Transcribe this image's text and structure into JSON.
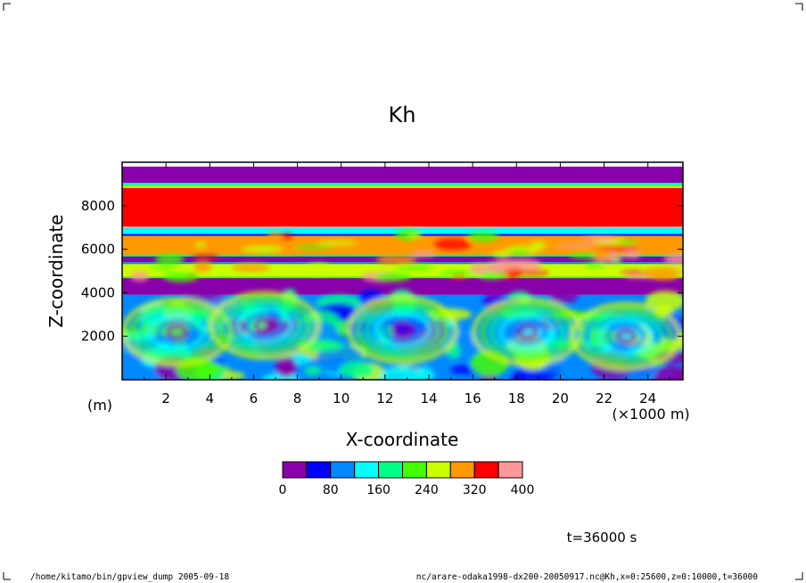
{
  "chart_data": {
    "type": "heatmap",
    "title": "Kh",
    "xlabel": "X-coordinate",
    "ylabel": "Z-coordinate",
    "x_unit_label": "(×1000 m)",
    "y_unit_label": "(m)",
    "xlim": [
      0,
      25.6
    ],
    "ylim": [
      0,
      10000
    ],
    "x_ticks": [
      2,
      4,
      6,
      8,
      10,
      12,
      14,
      16,
      18,
      20,
      22,
      24
    ],
    "y_ticks": [
      2000,
      4000,
      6000,
      8000
    ],
    "colorbar": {
      "levels": [
        0,
        40,
        80,
        120,
        160,
        200,
        240,
        280,
        320,
        360,
        400
      ],
      "tick_labels": [
        "0",
        "80",
        "160",
        "240",
        "320",
        "400"
      ],
      "colors": [
        "#8800aa",
        "#0000ff",
        "#0088ff",
        "#00ffff",
        "#00ff88",
        "#44ff00",
        "#ccff00",
        "#ff9900",
        "#ff0000",
        "#ff9999"
      ]
    },
    "bands_by_height": [
      {
        "z": [
          9000,
          9800
        ],
        "level": 0
      },
      {
        "z": [
          8900,
          9000
        ],
        "level": 5
      },
      {
        "z": [
          7000,
          8900
        ],
        "level": 8
      },
      {
        "z": [
          6700,
          7000
        ],
        "level": 3
      },
      {
        "z": [
          5700,
          6700
        ],
        "level": 7
      },
      {
        "z": [
          5400,
          5700
        ],
        "level": 0
      },
      {
        "z": [
          4700,
          5400
        ],
        "level": 6
      },
      {
        "z": [
          3900,
          4700
        ],
        "level": 0
      },
      {
        "z": [
          0,
          3900
        ],
        "level": 2
      }
    ],
    "vortex_centers": [
      {
        "x": 2.5,
        "z": 2200
      },
      {
        "x": 6.5,
        "z": 2500
      },
      {
        "x": 12.8,
        "z": 2300
      },
      {
        "x": 18.5,
        "z": 2200
      },
      {
        "x": 23.0,
        "z": 2000
      }
    ],
    "time_label": "t=36000 s"
  },
  "footer": {
    "left": "/home/kitamo/bin/gpview_dump  2005-09-18",
    "right": "nc/arare-odaka1998-dx200-20050917.nc@Kh,x=0:25600,z=0:10000,t=36000"
  }
}
